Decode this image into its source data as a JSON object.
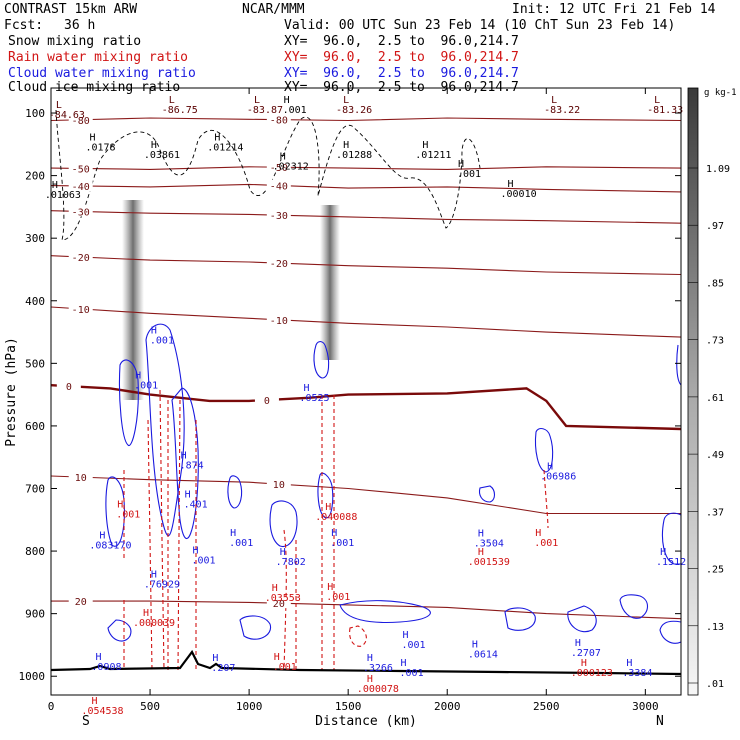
{
  "header": {
    "model": "CONTRAST 15km ARW",
    "center": "NCAR/MMM",
    "init": "Init: 12 UTC Fri 21 Feb 14",
    "fcst_label": "Fcst:",
    "fcst_value": "36 h",
    "valid": "Valid: 00 UTC Sun 23 Feb 14 (10 ChT Sun 23 Feb 14)",
    "fields": [
      {
        "name": "Snow mixing ratio",
        "xy": "XY=  96.0,  2.5 to  96.0,214.7",
        "color": "#000000"
      },
      {
        "name": "Rain water mixing ratio",
        "xy": "XY=  96.0,  2.5 to  96.0,214.7",
        "color": "#d11414"
      },
      {
        "name": "Cloud water mixing ratio",
        "xy": "XY=  96.0,  2.5 to  96.0,214.7",
        "color": "#1a1adf"
      },
      {
        "name": "Cloud ice mixing ratio",
        "xy": "XY=  96.0,  2.5 to  96.0,214.7",
        "color": "#000000"
      }
    ]
  },
  "chart_data": {
    "type": "contour",
    "xlabel": "Distance (km)",
    "ylabel": "Pressure (hPa)",
    "x_ticks": [
      0,
      500,
      1000,
      1500,
      2000,
      2500,
      3000
    ],
    "y_ticks": [
      100,
      200,
      300,
      400,
      500,
      600,
      700,
      800,
      900,
      1000
    ],
    "xlim": [
      0,
      3180
    ],
    "ylim": [
      1030,
      60
    ],
    "left_end": "S",
    "right_end": "N",
    "colorbar": {
      "unit": "g kg-1",
      "labels": [
        "1.09",
        ".97",
        ".85",
        ".73",
        ".61",
        ".49",
        ".37",
        ".25",
        ".13",
        ".01"
      ]
    },
    "temperature_contours": [
      {
        "label": "-80",
        "x": [
          0,
          500,
          1000,
          1500,
          2000,
          2500,
          3180
        ],
        "p": [
          112,
          108,
          110,
          112,
          108,
          110,
          112
        ]
      },
      {
        "label": "-50",
        "x": [
          0,
          500,
          1000,
          1500,
          2000,
          2500,
          3180
        ],
        "p": [
          188,
          190,
          186,
          188,
          190,
          186,
          188
        ]
      },
      {
        "label": "-40",
        "x": [
          0,
          500,
          1000,
          1500,
          2000,
          2500,
          3180
        ],
        "p": [
          216,
          218,
          214,
          220,
          218,
          222,
          226
        ]
      },
      {
        "label": "-30",
        "x": [
          0,
          500,
          1000,
          1500,
          2000,
          2500,
          3180
        ],
        "p": [
          256,
          260,
          262,
          266,
          270,
          272,
          276
        ]
      },
      {
        "label": "-20",
        "x": [
          0,
          500,
          1000,
          1500,
          2000,
          2500,
          3180
        ],
        "p": [
          328,
          335,
          338,
          344,
          348,
          354,
          358
        ]
      },
      {
        "label": "-10",
        "x": [
          0,
          500,
          1000,
          1500,
          2000,
          2500,
          3180
        ],
        "p": [
          410,
          420,
          428,
          436,
          442,
          450,
          458
        ]
      },
      {
        "label": "0",
        "x": [
          0,
          300,
          500,
          800,
          1000,
          1300,
          1500,
          2000,
          2400,
          2500,
          2600,
          3180
        ],
        "p": [
          535,
          540,
          550,
          560,
          560,
          555,
          550,
          548,
          540,
          560,
          600,
          605
        ]
      },
      {
        "label": "10",
        "x": [
          0,
          500,
          1000,
          1500,
          2000,
          2500,
          3180
        ],
        "p": [
          680,
          686,
          690,
          700,
          715,
          740,
          740
        ]
      },
      {
        "label": "20",
        "x": [
          0,
          500,
          1000,
          1500,
          2000,
          2500,
          3180
        ],
        "p": [
          880,
          880,
          882,
          886,
          890,
          900,
          908
        ]
      }
    ],
    "markers": [
      {
        "text": "-84.63",
        "x": 80,
        "p": 108,
        "color": "#5a0000"
      },
      {
        "text": "-86.75",
        "x": 650,
        "p": 100,
        "color": "#5a0000"
      },
      {
        "text": "-83.87",
        "x": 1080,
        "p": 100,
        "color": "#5a0000"
      },
      {
        "text": "-83.26",
        "x": 1530,
        "p": 100,
        "color": "#5a0000"
      },
      {
        "text": "-83.22",
        "x": 2580,
        "p": 100,
        "color": "#5a0000"
      },
      {
        "text": "-81.33",
        "x": 3100,
        "p": 100,
        "color": "#5a0000"
      },
      {
        "text": ".0178",
        "x": 250,
        "p": 160,
        "color": "#000000"
      },
      {
        "text": ".03861",
        "x": 560,
        "p": 172,
        "color": "#000000"
      },
      {
        "text": ".01214",
        "x": 880,
        "p": 160,
        "color": "#000000"
      },
      {
        "text": ".001",
        "x": 1230,
        "p": 100,
        "color": "#000000"
      },
      {
        "text": ".01288",
        "x": 1530,
        "p": 172,
        "color": "#000000"
      },
      {
        "text": ".01211",
        "x": 1930,
        "p": 172,
        "color": "#000000"
      },
      {
        "text": ".02312",
        "x": 1210,
        "p": 190,
        "color": "#000000"
      },
      {
        "text": ".001",
        "x": 2110,
        "p": 202,
        "color": "#000000"
      },
      {
        "text": ".01063",
        "x": 60,
        "p": 236,
        "color": "#000000"
      },
      {
        "text": ".00010",
        "x": 2360,
        "p": 234,
        "color": "#000000"
      },
      {
        "text": ".001",
        "x": 560,
        "p": 468,
        "color": "#1a1adf"
      },
      {
        "text": ".001",
        "x": 480,
        "p": 540,
        "color": "#1a1adf"
      },
      {
        "text": ".0525",
        "x": 1330,
        "p": 560,
        "color": "#1a1adf"
      },
      {
        "text": ".874",
        "x": 710,
        "p": 668,
        "color": "#1a1adf"
      },
      {
        "text": ".401",
        "x": 730,
        "p": 730,
        "color": "#1a1adf"
      },
      {
        "text": ".001",
        "x": 390,
        "p": 746,
        "color": "#d11414"
      },
      {
        "text": ".001",
        "x": 960,
        "p": 792,
        "color": "#1a1adf"
      },
      {
        "text": ".001",
        "x": 1470,
        "p": 792,
        "color": "#1a1adf"
      },
      {
        "text": ".040088",
        "x": 1440,
        "p": 750,
        "color": "#d11414"
      },
      {
        "text": ".083170",
        "x": 300,
        "p": 796,
        "color": "#1a1adf"
      },
      {
        "text": ".001",
        "x": 770,
        "p": 820,
        "color": "#1a1adf"
      },
      {
        "text": ".3504",
        "x": 2210,
        "p": 793,
        "color": "#1a1adf"
      },
      {
        "text": ".001539",
        "x": 2210,
        "p": 822,
        "color": "#d11414"
      },
      {
        "text": ".7802",
        "x": 1210,
        "p": 822,
        "color": "#1a1adf"
      },
      {
        "text": ".76929",
        "x": 560,
        "p": 858,
        "color": "#1a1adf"
      },
      {
        "text": ".1512",
        "x": 3130,
        "p": 822,
        "color": "#1a1adf"
      },
      {
        "text": ".03553",
        "x": 1170,
        "p": 880,
        "color": "#d11414"
      },
      {
        "text": ".001",
        "x": 1450,
        "p": 878,
        "color": "#d11414"
      },
      {
        "text": ".06986",
        "x": 2560,
        "p": 686,
        "color": "#1a1adf"
      },
      {
        "text": ".001",
        "x": 2500,
        "p": 792,
        "color": "#d11414"
      },
      {
        "text": ".000039",
        "x": 520,
        "p": 920,
        "color": "#d11414"
      },
      {
        "text": ".0908",
        "x": 280,
        "p": 990,
        "color": "#1a1adf"
      },
      {
        "text": ".207",
        "x": 870,
        "p": 992,
        "color": "#1a1adf"
      },
      {
        "text": ".001",
        "x": 1180,
        "p": 990,
        "color": "#d11414"
      },
      {
        "text": ".3266",
        "x": 1650,
        "p": 992,
        "color": "#1a1adf"
      },
      {
        "text": ".001",
        "x": 1830,
        "p": 955,
        "color": "#1a1adf"
      },
      {
        "text": ".001",
        "x": 1820,
        "p": 1000,
        "color": "#1a1adf"
      },
      {
        "text": ".000078",
        "x": 1650,
        "p": 1025,
        "color": "#d11414"
      },
      {
        "text": ".0614",
        "x": 2180,
        "p": 970,
        "color": "#1a1adf"
      },
      {
        "text": ".2707",
        "x": 2700,
        "p": 968,
        "color": "#1a1adf"
      },
      {
        "text": ".000123",
        "x": 2730,
        "p": 1000,
        "color": "#d11414"
      },
      {
        "text": ".3384",
        "x": 2960,
        "p": 1000,
        "color": "#1a1adf"
      },
      {
        "text": ".054538",
        "x": 260,
        "p": 1060,
        "color": "#d11414"
      }
    ]
  }
}
